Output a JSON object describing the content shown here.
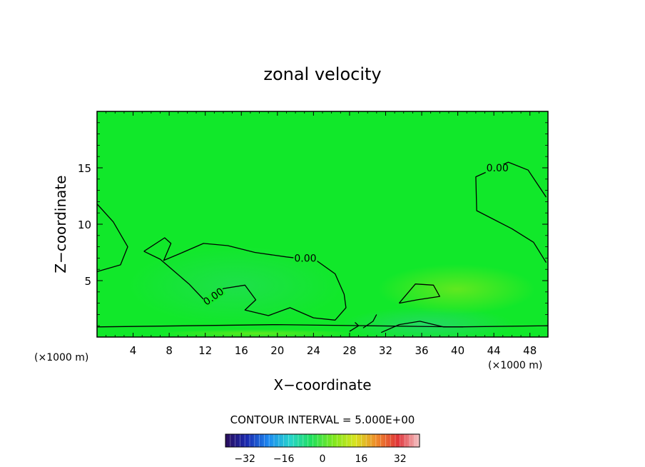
{
  "chart_data": {
    "type": "heatmap",
    "title": "zonal velocity",
    "xlabel": "X−coordinate",
    "ylabel": "Z−coordinate",
    "x_unit_left": "(×1000 m)",
    "x_unit_right": "(×1000 m)",
    "xlim": [
      0,
      50
    ],
    "ylim": [
      0,
      20
    ],
    "x_ticks": [
      4,
      8,
      12,
      16,
      20,
      24,
      28,
      32,
      36,
      40,
      44,
      48
    ],
    "x_tick_labels": [
      "4",
      "8",
      "12",
      "16",
      "20",
      "24",
      "28",
      "32",
      "36",
      "40",
      "44",
      "48"
    ],
    "y_ticks": [
      5,
      10,
      15
    ],
    "y_tick_labels": [
      "5",
      "10",
      "15"
    ],
    "contour_interval_text": "CONTOUR INTERVAL = 5.000E+00",
    "contour_labels": [
      {
        "x": 44.4,
        "z": 15.0,
        "text": "0.00"
      },
      {
        "x": 23.1,
        "z": 7.0,
        "text": "0.00"
      },
      {
        "x": 12.9,
        "z": 3.6,
        "text": "0.00"
      }
    ],
    "contours": [
      [
        [
          0.0,
          11.8
        ],
        [
          1.8,
          10.2
        ],
        [
          3.4,
          8.0
        ],
        [
          2.6,
          6.4
        ],
        [
          0.0,
          5.8
        ]
      ],
      [
        [
          49.8,
          12.4
        ],
        [
          47.8,
          14.8
        ],
        [
          45.6,
          15.5
        ],
        [
          42.0,
          14.2
        ],
        [
          42.1,
          11.2
        ],
        [
          46.0,
          9.6
        ],
        [
          48.4,
          8.4
        ],
        [
          49.8,
          6.6
        ]
      ],
      [
        [
          5.2,
          7.6
        ],
        [
          7.5,
          8.8
        ],
        [
          8.2,
          8.3
        ],
        [
          7.4,
          6.8
        ],
        [
          9.2,
          7.4
        ],
        [
          11.8,
          8.3
        ],
        [
          14.5,
          8.1
        ],
        [
          17.5,
          7.5
        ],
        [
          21.0,
          7.1
        ],
        [
          24.3,
          6.8
        ],
        [
          26.4,
          5.6
        ],
        [
          27.4,
          3.8
        ],
        [
          27.6,
          2.6
        ],
        [
          26.4,
          1.5
        ],
        [
          24.0,
          1.7
        ],
        [
          21.4,
          2.6
        ],
        [
          19.0,
          1.9
        ],
        [
          16.4,
          2.4
        ],
        [
          17.6,
          3.3
        ],
        [
          16.4,
          4.6
        ],
        [
          14.0,
          4.3
        ],
        [
          12.1,
          3.1
        ],
        [
          10.2,
          4.7
        ],
        [
          7.0,
          6.9
        ],
        [
          5.2,
          7.6
        ]
      ],
      [
        [
          33.5,
          3.0
        ],
        [
          35.3,
          4.7
        ],
        [
          37.3,
          4.6
        ],
        [
          38.0,
          3.6
        ],
        [
          35.5,
          3.3
        ],
        [
          33.5,
          3.0
        ]
      ],
      [
        [
          0.0,
          0.9
        ],
        [
          10.0,
          1.0
        ],
        [
          20.0,
          1.1
        ],
        [
          30.0,
          1.0
        ],
        [
          40.0,
          0.9
        ],
        [
          50.0,
          1.0
        ]
      ],
      [
        [
          28.0,
          0.5
        ],
        [
          29.0,
          1.0
        ],
        [
          28.6,
          1.3
        ]
      ],
      [
        [
          29.5,
          0.8
        ],
        [
          30.6,
          1.4
        ],
        [
          31.0,
          2.0
        ]
      ],
      [
        [
          31.5,
          0.4
        ],
        [
          33.5,
          1.1
        ],
        [
          35.8,
          1.4
        ],
        [
          38.4,
          0.9
        ],
        [
          40.6,
          0.9
        ]
      ]
    ],
    "colorbar_ticks": [
      -32,
      -16,
      0,
      16,
      32
    ],
    "colorbar_tick_labels": [
      "−32",
      "−16",
      "0",
      "16",
      "32"
    ],
    "colorbar_range": [
      -40,
      40
    ],
    "colors": {
      "background_field": "#11e82a",
      "slight_negative": "#20de50",
      "slight_positive": "#7be81c",
      "colorbar_stops": [
        "#2a0d5c",
        "#1a2ab0",
        "#1c8af2",
        "#27d4cc",
        "#21e05c",
        "#7ee81e",
        "#d8e420",
        "#ef8a2a",
        "#e0343a",
        "#f4c6c8"
      ]
    }
  }
}
